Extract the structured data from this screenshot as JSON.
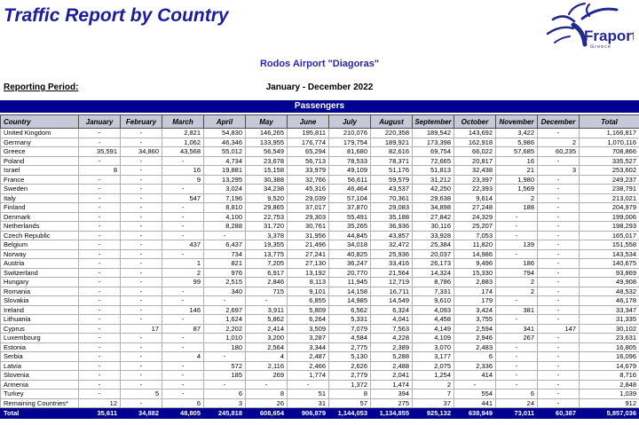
{
  "page": {
    "title": "Traffic Report by Country",
    "airport": "Rodos Airport \"Diagoras\"",
    "reporting_period_label": "Reporting Period:",
    "reporting_period_value": "January - December 2022",
    "section_title": "Passengers"
  },
  "logo": {
    "brand": "Fraport",
    "region": "Greece",
    "icon": "starburst-icon",
    "color": "#23288e"
  },
  "colors": {
    "navy_bar": "#000091",
    "title_navy": "#1c1c9c",
    "airport_blue": "#2626b0",
    "header_bg": "#c8c8d8",
    "grid_line": "#b0b0b0"
  },
  "table": {
    "columns": [
      "Country",
      "January",
      "February",
      "March",
      "April",
      "May",
      "June",
      "July",
      "August",
      "September",
      "October",
      "November",
      "December",
      "Total"
    ],
    "rows": [
      {
        "country": "United Kingdom",
        "values": [
          "-",
          "-",
          "2,821",
          "54,830",
          "146,265",
          "195,811",
          "210,076",
          "220,358",
          "189,542",
          "143,692",
          "3,422",
          "-",
          "1,166,817"
        ]
      },
      {
        "country": "Germany",
        "values": [
          "-",
          "-",
          "1,062",
          "46,346",
          "133,955",
          "176,774",
          "179,754",
          "189,921",
          "173,398",
          "162,918",
          "5,986",
          "2",
          "1,070,116"
        ]
      },
      {
        "country": "Greece",
        "values": [
          "35,591",
          "34,860",
          "43,568",
          "55,012",
          "56,549",
          "65,294",
          "81,680",
          "82,616",
          "69,754",
          "66,022",
          "57,685",
          "60,235",
          "708,866"
        ]
      },
      {
        "country": "Poland",
        "values": [
          "-",
          "-",
          "-",
          "4,734",
          "23,678",
          "56,713",
          "78,533",
          "78,371",
          "72,665",
          "20,817",
          "16",
          "-",
          "335,527"
        ]
      },
      {
        "country": "Israel",
        "values": [
          "8",
          "-",
          "16",
          "19,881",
          "15,158",
          "33,979",
          "49,109",
          "51,176",
          "51,813",
          "32,438",
          "21",
          "3",
          "253,602"
        ]
      },
      {
        "country": "France",
        "values": [
          "-",
          "-",
          "9",
          "13,295",
          "30,388",
          "32,766",
          "56,611",
          "59,579",
          "31,212",
          "23,397",
          "1,980",
          "-",
          "249,237"
        ]
      },
      {
        "country": "Sweden",
        "values": [
          "-",
          "-",
          "-",
          "3,024",
          "34,238",
          "45,316",
          "46,464",
          "43,537",
          "42,250",
          "22,393",
          "1,569",
          "-",
          "238,791"
        ]
      },
      {
        "country": "Italy",
        "values": [
          "-",
          "-",
          "547",
          "7,196",
          "9,520",
          "29,039",
          "57,104",
          "70,361",
          "29,638",
          "9,614",
          "2",
          "-",
          "213,021"
        ]
      },
      {
        "country": "Finland",
        "values": [
          "-",
          "-",
          "-",
          "8,810",
          "29,865",
          "37,017",
          "37,870",
          "29,083",
          "34,898",
          "27,248",
          "188",
          "-",
          "204,979"
        ]
      },
      {
        "country": "Denmark",
        "values": [
          "-",
          "-",
          "-",
          "4,100",
          "22,753",
          "29,303",
          "55,491",
          "35,188",
          "27,842",
          "24,329",
          "-",
          "-",
          "199,006"
        ]
      },
      {
        "country": "Netherlands",
        "values": [
          "-",
          "-",
          "-",
          "8,288",
          "31,720",
          "30,761",
          "35,265",
          "36,936",
          "30,116",
          "25,207",
          "-",
          "-",
          "198,293"
        ]
      },
      {
        "country": "Czech Republic",
        "values": [
          "-",
          "-",
          "-",
          "-",
          "3,378",
          "31,956",
          "44,845",
          "43,857",
          "33,928",
          "7,053",
          "-",
          "-",
          "165,017"
        ]
      },
      {
        "country": "Belgium",
        "values": [
          "-",
          "-",
          "437",
          "6,437",
          "19,355",
          "21,496",
          "34,018",
          "32,472",
          "25,384",
          "11,820",
          "139",
          "-",
          "151,558"
        ]
      },
      {
        "country": "Norway",
        "values": [
          "-",
          "-",
          "-",
          "734",
          "13,775",
          "27,241",
          "40,825",
          "25,936",
          "20,037",
          "14,986",
          "-",
          "-",
          "143,534"
        ]
      },
      {
        "country": "Austria",
        "values": [
          "-",
          "-",
          "1",
          "821",
          "7,205",
          "27,130",
          "36,247",
          "33,416",
          "26,173",
          "9,496",
          "186",
          "-",
          "140,675"
        ]
      },
      {
        "country": "Switzerland",
        "values": [
          "-",
          "-",
          "2",
          "976",
          "6,917",
          "13,192",
          "20,770",
          "21,564",
          "14,324",
          "15,330",
          "794",
          "-",
          "93,869"
        ]
      },
      {
        "country": "Hungary",
        "values": [
          "-",
          "-",
          "99",
          "2,515",
          "2,846",
          "8,113",
          "11,945",
          "12,719",
          "8,786",
          "2,883",
          "2",
          "-",
          "49,908"
        ]
      },
      {
        "country": "Romania",
        "values": [
          "-",
          "-",
          "-",
          "340",
          "715",
          "9,101",
          "14,158",
          "16,711",
          "7,331",
          "174",
          "2",
          "-",
          "48,532"
        ]
      },
      {
        "country": "Slovakia",
        "values": [
          "-",
          "-",
          "-",
          "-",
          "-",
          "6,855",
          "14,985",
          "14,549",
          "9,610",
          "179",
          "-",
          "-",
          "46,178"
        ]
      },
      {
        "country": "Ireland",
        "values": [
          "-",
          "-",
          "146",
          "2,697",
          "3,911",
          "5,809",
          "6,562",
          "6,324",
          "4,093",
          "3,424",
          "381",
          "-",
          "33,347"
        ]
      },
      {
        "country": "Lithuania",
        "values": [
          "-",
          "-",
          "-",
          "1,624",
          "5,862",
          "6,264",
          "5,331",
          "4,041",
          "4,458",
          "3,755",
          "-",
          "-",
          "31,335"
        ]
      },
      {
        "country": "Cyprus",
        "values": [
          "-",
          "17",
          "87",
          "2,202",
          "2,414",
          "3,509",
          "7,079",
          "7,563",
          "4,149",
          "2,594",
          "341",
          "147",
          "30,102"
        ]
      },
      {
        "country": "Luxembourg",
        "values": [
          "-",
          "-",
          "-",
          "1,010",
          "3,200",
          "3,287",
          "4,584",
          "4,228",
          "4,109",
          "2,946",
          "267",
          "-",
          "23,631"
        ]
      },
      {
        "country": "Estonia",
        "values": [
          "-",
          "-",
          "-",
          "180",
          "2,564",
          "3,344",
          "2,775",
          "2,389",
          "3,070",
          "2,483",
          "-",
          "-",
          "16,805"
        ]
      },
      {
        "country": "Serbia",
        "values": [
          "-",
          "-",
          "4",
          "-",
          "4",
          "2,487",
          "5,130",
          "5,288",
          "3,177",
          "6",
          "-",
          "-",
          "16,096"
        ]
      },
      {
        "country": "Latvia",
        "values": [
          "-",
          "-",
          "-",
          "572",
          "2,116",
          "2,466",
          "2,626",
          "2,488",
          "2,075",
          "2,336",
          "-",
          "-",
          "14,679"
        ]
      },
      {
        "country": "Slovenia",
        "values": [
          "-",
          "-",
          "-",
          "185",
          "269",
          "1,774",
          "2,779",
          "2,041",
          "1,254",
          "414",
          "-",
          "-",
          "8,716"
        ]
      },
      {
        "country": "Armenia",
        "values": [
          "-",
          "-",
          "-",
          "-",
          "-",
          "-",
          "1,372",
          "1,474",
          "2",
          "-",
          "-",
          "-",
          "2,848"
        ]
      },
      {
        "country": "Turkey",
        "values": [
          "-",
          "5",
          "-",
          "6",
          "8",
          "51",
          "8",
          "394",
          "7",
          "554",
          "6",
          "-",
          "1,039"
        ]
      },
      {
        "country": "Remaining Countries*",
        "values": [
          "12",
          "-",
          "6",
          "3",
          "26",
          "31",
          "57",
          "275",
          "37",
          "441",
          "24",
          "-",
          "912"
        ]
      }
    ],
    "total_row": {
      "label": "Total",
      "values": [
        "35,611",
        "34,882",
        "48,805",
        "245,818",
        "608,654",
        "906,879",
        "1,144,053",
        "1,134,855",
        "925,132",
        "638,949",
        "73,011",
        "60,387",
        "5,857,036"
      ]
    }
  }
}
